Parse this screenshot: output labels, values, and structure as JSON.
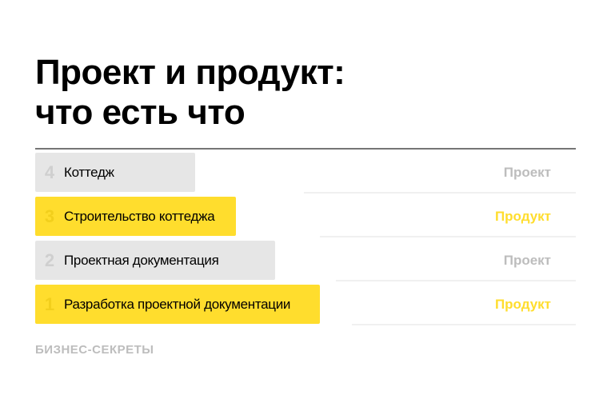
{
  "title_lines": [
    "Проект и продукт:",
    "что есть что"
  ],
  "rows": [
    {
      "number": "4",
      "label": "Коттедж",
      "kind": "Проект",
      "color": "#e6e6e6",
      "kind_color": "#bdbdbd",
      "num_color": "#cfcfcf"
    },
    {
      "number": "3",
      "label": "Строительство коттеджа",
      "kind": "Продукт",
      "color": "#ffdd2d",
      "kind_color": "#ffdd2d",
      "num_color": "#f2cf1c"
    },
    {
      "number": "2",
      "label": "Проектная документация",
      "kind": "Проект",
      "color": "#e6e6e6",
      "kind_color": "#bdbdbd",
      "num_color": "#cfcfcf"
    },
    {
      "number": "1",
      "label": "Разработка проектной документации",
      "kind": "Продукт",
      "color": "#ffdd2d",
      "kind_color": "#ffdd2d",
      "num_color": "#f2cf1c"
    }
  ],
  "brand": "БИЗНЕС-СЕКРЕТЫ"
}
